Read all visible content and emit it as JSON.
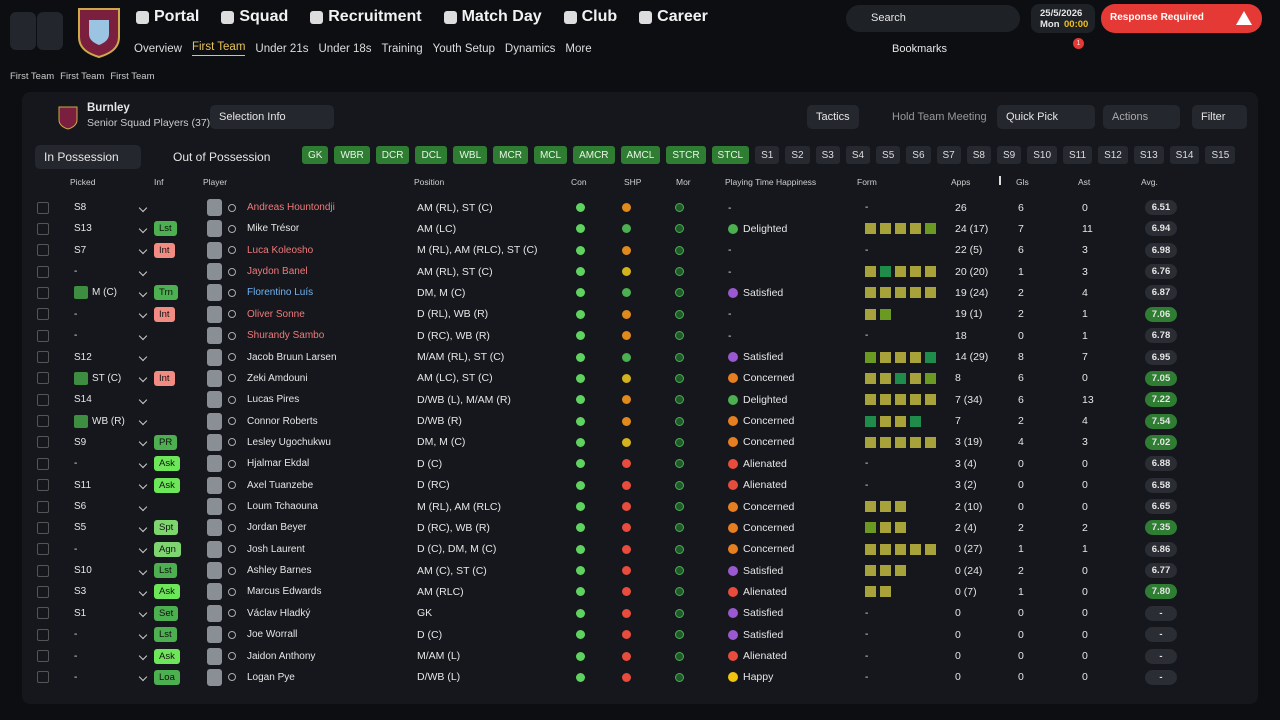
{
  "nav": {
    "menu": [
      "Portal",
      "Squad",
      "Recruitment",
      "Match Day",
      "Club",
      "Career"
    ],
    "submenu": [
      "Overview",
      "First Team",
      "Under 21s",
      "Under 18s",
      "Training",
      "Youth Setup",
      "Dynamics",
      "More"
    ],
    "search": "Search",
    "date": "25/5/2026",
    "day": "Mon",
    "time": "00:00",
    "alert": "Response Required",
    "bookmarks": "Bookmarks",
    "badge": "1"
  },
  "breadcrumb": [
    "First Team",
    "First Team",
    "First Team"
  ],
  "team": {
    "name": "Burnley",
    "subtitle": "Senior Squad Players (37)"
  },
  "toolbar": {
    "selection_info": "Selection Info",
    "tactics": "Tactics",
    "meeting": "Hold Team Meeting",
    "quick_pick": "Quick Pick",
    "actions": "Actions",
    "filter": "Filter"
  },
  "tabs": [
    "In Possession",
    "Out of Possession"
  ],
  "positions": {
    "assigned": [
      "GK",
      "WBR",
      "DCR",
      "DCL",
      "WBL",
      "MCR",
      "MCL",
      "AMCR",
      "AMCL",
      "STCR",
      "STCL"
    ],
    "subs": [
      "S1",
      "S2",
      "S3",
      "S4",
      "S5",
      "S6",
      "S7",
      "S8",
      "S9",
      "S10",
      "S11",
      "S12",
      "S13",
      "S14",
      "S15"
    ]
  },
  "table": {
    "columns": [
      "Picked",
      "Inf",
      "Player",
      "Position",
      "Con",
      "SHP",
      "Mor",
      "Playing Time Happiness",
      "Form",
      "Apps",
      "Gls",
      "Ast",
      "Avg."
    ],
    "rows": [
      {
        "picked": "S8",
        "name": "Andreas Hountondji",
        "name_color": "#f07a7a",
        "pos": "AM (RL), ST (C)",
        "shp": "#e08a1e",
        "mood": "-",
        "form": "-",
        "apps": 26,
        "gls": 6,
        "ast": 0,
        "avg": "6.51"
      },
      {
        "picked": "S13",
        "inf": "Lst",
        "inf_color": "#4caf50",
        "name": "Mike Trésor",
        "pos": "AM (LC)",
        "shp": "#4caf50",
        "mood": "Delighted",
        "mood_color": "#4caf50",
        "form": [
          "#a8a23a",
          "#a8a23a",
          "#a8a23a",
          "#a8a23a",
          "#6b9a23"
        ],
        "apps": "24 (17)",
        "gls": 7,
        "ast": 11,
        "avg": "6.94"
      },
      {
        "picked": "S7",
        "inf": "Int",
        "inf_color": "#f28b82",
        "name": "Luca Koleosho",
        "name_color": "#f07a7a",
        "pos": "M (RL), AM (RLC), ST (C)",
        "shp": "#e08a1e",
        "mood": "-",
        "form": "-",
        "apps": "22 (5)",
        "gls": 6,
        "ast": 3,
        "avg": "6.98"
      },
      {
        "picked": "-",
        "name": "Jaydon Banel",
        "name_color": "#f07a7a",
        "pos": "AM (RL), ST (C)",
        "shp": "#d4b21e",
        "mood": "-",
        "form": [
          "#a8a23a",
          "#1f8c4c",
          "#a8a23a",
          "#a8a23a",
          "#a8a23a"
        ],
        "apps": "20 (20)",
        "gls": 1,
        "ast": 3,
        "avg": "6.76"
      },
      {
        "picked": "M (C)",
        "shirt": true,
        "inf": "Trn",
        "inf_color": "#4caf50",
        "name": "Florentino Luís",
        "name_color": "#6fb3f2",
        "pos": "DM, M (C)",
        "shp": "#4caf50",
        "mood": "Satisfied",
        "mood_color": "#9b59d0",
        "form": [
          "#a8a23a",
          "#a8a23a",
          "#a8a23a",
          "#a8a23a",
          "#a8a23a"
        ],
        "apps": "19 (24)",
        "gls": 2,
        "ast": 4,
        "avg": "6.87"
      },
      {
        "picked": "-",
        "inf": "Int",
        "inf_color": "#f28b82",
        "name": "Oliver Sonne",
        "name_color": "#f07a7a",
        "pos": "D (RL), WB (R)",
        "shp": "#e08a1e",
        "mood": "-",
        "form": [
          "#a8a23a",
          "#6b9a23"
        ],
        "apps": "19 (1)",
        "gls": 2,
        "ast": 1,
        "avg": "7.06",
        "avg_color": "#2e7d32"
      },
      {
        "picked": "-",
        "name": "Shurandy Sambo",
        "name_color": "#f07a7a",
        "pos": "D (RC), WB (R)",
        "shp": "#e08a1e",
        "mood": "-",
        "form": "-",
        "apps": 18,
        "gls": 0,
        "ast": 1,
        "avg": "6.78"
      },
      {
        "picked": "S12",
        "name": "Jacob Bruun Larsen",
        "pos": "M/AM (RL), ST (C)",
        "shp": "#4caf50",
        "mood": "Satisfied",
        "mood_color": "#9b59d0",
        "form": [
          "#6b9a23",
          "#a8a23a",
          "#a8a23a",
          "#a8a23a",
          "#1f8c4c"
        ],
        "apps": "14 (29)",
        "gls": 8,
        "ast": 7,
        "avg": "6.95"
      },
      {
        "picked": "ST (C)",
        "shirt": true,
        "inf": "Int",
        "inf_color": "#f28b82",
        "name": "Zeki Amdouni",
        "pos": "AM (LC), ST (C)",
        "shp": "#d4b21e",
        "mood": "Concerned",
        "mood_color": "#e67e22",
        "form": [
          "#a8a23a",
          "#a8a23a",
          "#1f8c4c",
          "#a8a23a",
          "#6b9a23"
        ],
        "apps": 8,
        "gls": 6,
        "ast": 0,
        "avg": "7.05",
        "avg_color": "#2e7d32"
      },
      {
        "picked": "S14",
        "name": "Lucas Pires",
        "pos": "D/WB (L), M/AM (R)",
        "shp": "#e08a1e",
        "mood": "Delighted",
        "mood_color": "#4caf50",
        "form": [
          "#a8a23a",
          "#a8a23a",
          "#a8a23a",
          "#a8a23a",
          "#a8a23a"
        ],
        "apps": "7 (34)",
        "gls": 6,
        "ast": 13,
        "avg": "7.22",
        "avg_color": "#2e7d32"
      },
      {
        "picked": "WB (R)",
        "shirt": true,
        "name": "Connor Roberts",
        "pos": "D/WB (R)",
        "shp": "#e08a1e",
        "mood": "Concerned",
        "mood_color": "#e67e22",
        "form": [
          "#1f8c4c",
          "#a8a23a",
          "#a8a23a",
          "#1f8c4c"
        ],
        "apps": 7,
        "gls": 2,
        "ast": 4,
        "avg": "7.54",
        "avg_color": "#2e7d32"
      },
      {
        "picked": "S9",
        "inf": "PR",
        "inf_color": "#4caf50",
        "name": "Lesley Ugochukwu",
        "pos": "DM, M (C)",
        "shp": "#d4b21e",
        "mood": "Concerned",
        "mood_color": "#e67e22",
        "form": [
          "#a8a23a",
          "#a8a23a",
          "#a8a23a",
          "#a8a23a",
          "#a8a23a"
        ],
        "apps": "3 (19)",
        "gls": 4,
        "ast": 3,
        "avg": "7.02",
        "avg_color": "#2e7d32"
      },
      {
        "picked": "-",
        "inf": "Ask",
        "inf_color": "#6ee65a",
        "name": "Hjalmar Ekdal",
        "pos": "D (C)",
        "shp": "#e74c3c",
        "mood": "Alienated",
        "mood_color": "#e74c3c",
        "form": "-",
        "apps": "3 (4)",
        "gls": 0,
        "ast": 0,
        "avg": "6.88"
      },
      {
        "picked": "S11",
        "inf": "Ask",
        "inf_color": "#6ee65a",
        "name": "Axel Tuanzebe",
        "pos": "D (RC)",
        "shp": "#e74c3c",
        "mood": "Alienated",
        "mood_color": "#e74c3c",
        "form": "-",
        "apps": "3 (2)",
        "gls": 0,
        "ast": 0,
        "avg": "6.58"
      },
      {
        "picked": "S6",
        "name": "Loum Tchaouna",
        "pos": "M (RL), AM (RLC)",
        "shp": "#e74c3c",
        "mood": "Concerned",
        "mood_color": "#e67e22",
        "form": [
          "#a8a23a",
          "#a8a23a",
          "#a8a23a"
        ],
        "apps": "2 (10)",
        "gls": 0,
        "ast": 0,
        "avg": "6.65"
      },
      {
        "picked": "S5",
        "inf": "Spt",
        "inf_color": "#7ed56f",
        "name": "Jordan Beyer",
        "pos": "D (RC), WB (R)",
        "shp": "#e74c3c",
        "mood": "Concerned",
        "mood_color": "#e67e22",
        "form": [
          "#6b9a23",
          "#a8a23a",
          "#a8a23a"
        ],
        "apps": "2 (4)",
        "gls": 2,
        "ast": 2,
        "avg": "7.35",
        "avg_color": "#2e7d32"
      },
      {
        "picked": "-",
        "inf": "Agn",
        "inf_color": "#7ed56f",
        "name": "Josh Laurent",
        "pos": "D (C), DM, M (C)",
        "shp": "#e74c3c",
        "mood": "Concerned",
        "mood_color": "#e67e22",
        "form": [
          "#a8a23a",
          "#a8a23a",
          "#a8a23a",
          "#a8a23a",
          "#a8a23a"
        ],
        "apps": "0 (27)",
        "gls": 1,
        "ast": 1,
        "avg": "6.86"
      },
      {
        "picked": "S10",
        "inf": "Lst",
        "inf_color": "#4caf50",
        "name": "Ashley Barnes",
        "pos": "AM (C), ST (C)",
        "shp": "#e74c3c",
        "mood": "Satisfied",
        "mood_color": "#9b59d0",
        "form": [
          "#a8a23a",
          "#a8a23a",
          "#a8a23a"
        ],
        "apps": "0 (24)",
        "gls": 2,
        "ast": 0,
        "avg": "6.77"
      },
      {
        "picked": "S3",
        "inf": "Ask",
        "inf_color": "#6ee65a",
        "name": "Marcus Edwards",
        "pos": "AM (RLC)",
        "shp": "#e74c3c",
        "mood": "Alienated",
        "mood_color": "#e74c3c",
        "form": [
          "#a8a23a",
          "#a8a23a"
        ],
        "apps": "0 (7)",
        "gls": 1,
        "ast": 0,
        "avg": "7.80",
        "avg_color": "#2e7d32"
      },
      {
        "picked": "S1",
        "inf": "Set",
        "inf_color": "#4caf50",
        "name": "Václav Hladký",
        "pos": "GK",
        "shp": "#e74c3c",
        "mood": "Satisfied",
        "mood_color": "#9b59d0",
        "form": "-",
        "apps": 0,
        "gls": 0,
        "ast": 0,
        "avg": "-"
      },
      {
        "picked": "-",
        "inf": "Lst",
        "inf_color": "#4caf50",
        "name": "Joe Worrall",
        "pos": "D (C)",
        "shp": "#e74c3c",
        "mood": "Satisfied",
        "mood_color": "#9b59d0",
        "form": "-",
        "apps": 0,
        "gls": 0,
        "ast": 0,
        "avg": "-"
      },
      {
        "picked": "-",
        "inf": "Ask",
        "inf_color": "#6ee65a",
        "name": "Jaidon Anthony",
        "pos": "M/AM (L)",
        "shp": "#e74c3c",
        "mood": "Alienated",
        "mood_color": "#e74c3c",
        "form": "-",
        "apps": 0,
        "gls": 0,
        "ast": 0,
        "avg": "-"
      },
      {
        "picked": "-",
        "inf": "Loa",
        "inf_color": "#4caf50",
        "name": "Logan Pye",
        "pos": "D/WB (L)",
        "shp": "#e74c3c",
        "mood": "Happy",
        "mood_color": "#f1c40f",
        "form": "-",
        "apps": 0,
        "gls": 0,
        "ast": 0,
        "avg": "-"
      }
    ]
  }
}
